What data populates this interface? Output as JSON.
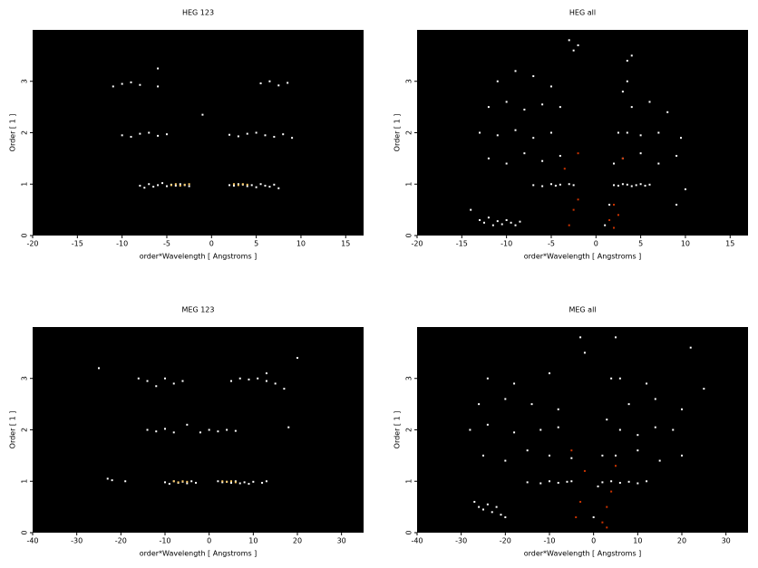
{
  "chart_data": [
    {
      "type": "scatter",
      "title": "HEG 123",
      "xlabel": "order*Wavelength [ Angstroms ]",
      "ylabel": "Order [ 1 ]",
      "xlim": [
        -20,
        17
      ],
      "ylim": [
        0,
        4
      ],
      "xticks": [
        -20,
        -15,
        -10,
        -5,
        0,
        5,
        10,
        15
      ],
      "yticks": [
        0,
        1,
        2,
        3
      ],
      "series": [
        {
          "color": "#ffffff",
          "x": [
            -8,
            -7.5,
            -7,
            -6.5,
            -6,
            -5.5,
            -5,
            -4.5,
            -4,
            -3.5,
            -3,
            -2.5,
            2,
            2.5,
            3,
            3.5,
            4,
            4.5,
            5,
            5.5,
            6,
            6.5,
            7,
            7.5,
            -10,
            -9,
            -8,
            -7,
            -6,
            -5,
            2,
            3,
            4,
            5,
            6,
            7,
            8,
            9,
            -11,
            -10,
            -9,
            -8,
            -6,
            5.5,
            6.5,
            7.5,
            8.5,
            -6,
            -1
          ],
          "y": [
            0.97,
            0.93,
            1.0,
            0.95,
            0.98,
            1.02,
            0.96,
            0.99,
            0.97,
            1.0,
            0.98,
            0.96,
            0.98,
            0.97,
            1.0,
            0.99,
            0.96,
            0.98,
            0.94,
            1.0,
            0.97,
            0.95,
            0.99,
            0.92,
            1.95,
            1.92,
            1.98,
            2.0,
            1.94,
            1.97,
            1.96,
            1.93,
            1.98,
            2.0,
            1.95,
            1.92,
            1.97,
            1.9,
            2.9,
            2.95,
            2.98,
            2.93,
            3.25,
            2.96,
            3.0,
            2.92,
            2.97,
            2.9,
            2.35
          ]
        },
        {
          "color": "#ffcc66",
          "x": [
            -4.5,
            -4,
            -3.5,
            -3,
            -2.5,
            2.5,
            3,
            3.5,
            4
          ],
          "y": [
            0.98,
            1.0,
            0.97,
            0.99,
            1.0,
            1.0,
            0.98,
            1.0,
            0.99
          ]
        }
      ]
    },
    {
      "type": "scatter",
      "title": "HEG all",
      "xlabel": "order*Wavelength [ Angstroms ]",
      "ylabel": "Order [ 1 ]",
      "xlim": [
        -20,
        17
      ],
      "ylim": [
        0,
        4
      ],
      "xticks": [
        -20,
        -15,
        -10,
        -5,
        0,
        5,
        10,
        15
      ],
      "yticks": [
        0,
        1,
        2,
        3
      ],
      "series": [
        {
          "color": "#ffffff",
          "x": [
            -13,
            -12.5,
            -12,
            -11.5,
            -11,
            -10.5,
            -10,
            -9.5,
            -9,
            -8.5,
            -7,
            -6,
            -5,
            -4.5,
            -4,
            -3,
            -2.5,
            2,
            2.5,
            3,
            3.5,
            4,
            4.5,
            5,
            5.5,
            6,
            -12,
            -10,
            -8,
            -6,
            -4,
            3,
            5,
            7,
            9,
            -13,
            -11,
            -9,
            -7,
            -5,
            3.5,
            5,
            7,
            9.5,
            -12,
            -10,
            -8,
            -6,
            -4,
            4,
            6,
            8,
            -11,
            -9,
            -7,
            -5,
            3.5,
            4,
            -3,
            -2.5,
            -2,
            1,
            1.5,
            2,
            2.5,
            3,
            3.5,
            9,
            10,
            -14
          ],
          "y": [
            0.3,
            0.25,
            0.35,
            0.2,
            0.28,
            0.22,
            0.3,
            0.25,
            0.2,
            0.27,
            0.98,
            0.96,
            1.0,
            0.97,
            0.99,
            1.0,
            0.98,
            0.98,
            0.97,
            1.0,
            0.99,
            0.96,
            0.98,
            1.0,
            0.97,
            0.99,
            1.5,
            1.4,
            1.6,
            1.45,
            1.55,
            1.5,
            1.6,
            1.4,
            1.55,
            2.0,
            1.95,
            2.05,
            1.9,
            2.0,
            2.0,
            1.95,
            2.0,
            1.9,
            2.5,
            2.6,
            2.45,
            2.55,
            2.5,
            2.5,
            2.6,
            2.4,
            3.0,
            3.2,
            3.1,
            2.9,
            3.0,
            3.5,
            3.8,
            3.6,
            3.7,
            0.2,
            0.6,
            1.4,
            2.0,
            2.8,
            3.4,
            0.6,
            0.9,
            0.5
          ]
        },
        {
          "color": "#cc3300",
          "x": [
            -3,
            -2.5,
            -2,
            -3.5,
            -2,
            1.5,
            2,
            2.5,
            3,
            2
          ],
          "y": [
            0.2,
            0.5,
            0.7,
            1.3,
            1.6,
            0.3,
            0.6,
            0.4,
            1.5,
            0.15
          ]
        }
      ]
    },
    {
      "type": "scatter",
      "title": "MEG 123",
      "xlabel": "order*Wavelength [ Angstroms ]",
      "ylabel": "Order [ 1 ]",
      "xlim": [
        -40,
        35
      ],
      "ylim": [
        0,
        4
      ],
      "xticks": [
        -40,
        -30,
        -20,
        -10,
        0,
        10,
        20,
        30
      ],
      "yticks": [
        0,
        1,
        2,
        3
      ],
      "series": [
        {
          "color": "#ffffff",
          "x": [
            -10,
            -9,
            -8,
            -7,
            -6,
            -5,
            -4,
            -3,
            2,
            3,
            4,
            5,
            6,
            7,
            8,
            9,
            10,
            -23,
            -22,
            -19,
            12,
            13,
            -14,
            -12,
            -10,
            -8,
            -5,
            -2,
            0,
            2,
            4,
            6,
            18,
            -16,
            -14,
            -12,
            -10,
            -8,
            -6,
            5,
            7,
            9,
            11,
            13,
            15,
            17,
            13,
            -25,
            20
          ],
          "y": [
            0.98,
            0.95,
            1.0,
            0.97,
            0.99,
            0.96,
            1.0,
            0.97,
            1.0,
            0.98,
            0.99,
            0.97,
            1.0,
            0.96,
            0.98,
            0.95,
            0.99,
            1.05,
            1.02,
            1.0,
            0.97,
            1.0,
            2.0,
            1.97,
            2.02,
            1.95,
            2.1,
            1.95,
            2.0,
            1.97,
            2.0,
            1.98,
            2.05,
            3.0,
            2.95,
            2.85,
            3.0,
            2.9,
            2.95,
            2.95,
            3.0,
            2.98,
            3.0,
            2.95,
            2.9,
            2.8,
            3.1,
            3.2,
            3.4
          ]
        },
        {
          "color": "#ffcc66",
          "x": [
            -8,
            -7,
            -6,
            -5,
            3,
            4,
            5,
            6
          ],
          "y": [
            1,
            0.98,
            1.0,
            0.99,
            1.0,
            0.99,
            1.0,
            0.98
          ]
        }
      ]
    },
    {
      "type": "scatter",
      "title": "MEG all",
      "xlabel": "order*Wavelength [ Angstroms ]",
      "ylabel": "Order [ 1 ]",
      "xlim": [
        -40,
        35
      ],
      "ylim": [
        0,
        4
      ],
      "xticks": [
        -40,
        -30,
        -20,
        -10,
        0,
        10,
        20,
        30
      ],
      "yticks": [
        0,
        1,
        2,
        3
      ],
      "series": [
        {
          "color": "#ffffff",
          "x": [
            -27,
            -26,
            -25,
            -24,
            -23,
            -22,
            -21,
            -20,
            -15,
            -12,
            -10,
            -8,
            -6,
            -5,
            2,
            4,
            6,
            8,
            10,
            12,
            -25,
            -20,
            -15,
            -10,
            -5,
            5,
            10,
            15,
            20,
            -28,
            -24,
            -18,
            -12,
            -8,
            6,
            10,
            14,
            18,
            -26,
            -20,
            -14,
            -8,
            8,
            14,
            20,
            -24,
            -18,
            -10,
            6,
            12,
            0,
            1,
            2,
            3,
            4,
            5,
            -3,
            -2,
            25,
            22
          ],
          "y": [
            0.6,
            0.5,
            0.45,
            0.55,
            0.4,
            0.5,
            0.35,
            0.3,
            0.98,
            0.96,
            1.0,
            0.97,
            0.99,
            1.0,
            0.98,
            1.0,
            0.97,
            0.99,
            0.96,
            1.0,
            1.5,
            1.4,
            1.6,
            1.5,
            1.45,
            1.5,
            1.6,
            1.4,
            1.5,
            2.0,
            2.1,
            1.95,
            2.0,
            2.05,
            2.0,
            1.9,
            2.05,
            2.0,
            2.5,
            2.6,
            2.5,
            2.4,
            2.5,
            2.6,
            2.4,
            3.0,
            2.9,
            3.1,
            3.0,
            2.9,
            0.3,
            0.9,
            1.5,
            2.2,
            3.0,
            3.8,
            3.8,
            3.5,
            2.8,
            3.6
          ]
        },
        {
          "color": "#cc3300",
          "x": [
            -4,
            -3,
            -2,
            -5,
            2,
            3,
            4,
            5,
            3
          ],
          "y": [
            0.3,
            0.6,
            1.2,
            1.6,
            0.2,
            0.5,
            0.8,
            1.3,
            0.1
          ]
        }
      ]
    }
  ]
}
